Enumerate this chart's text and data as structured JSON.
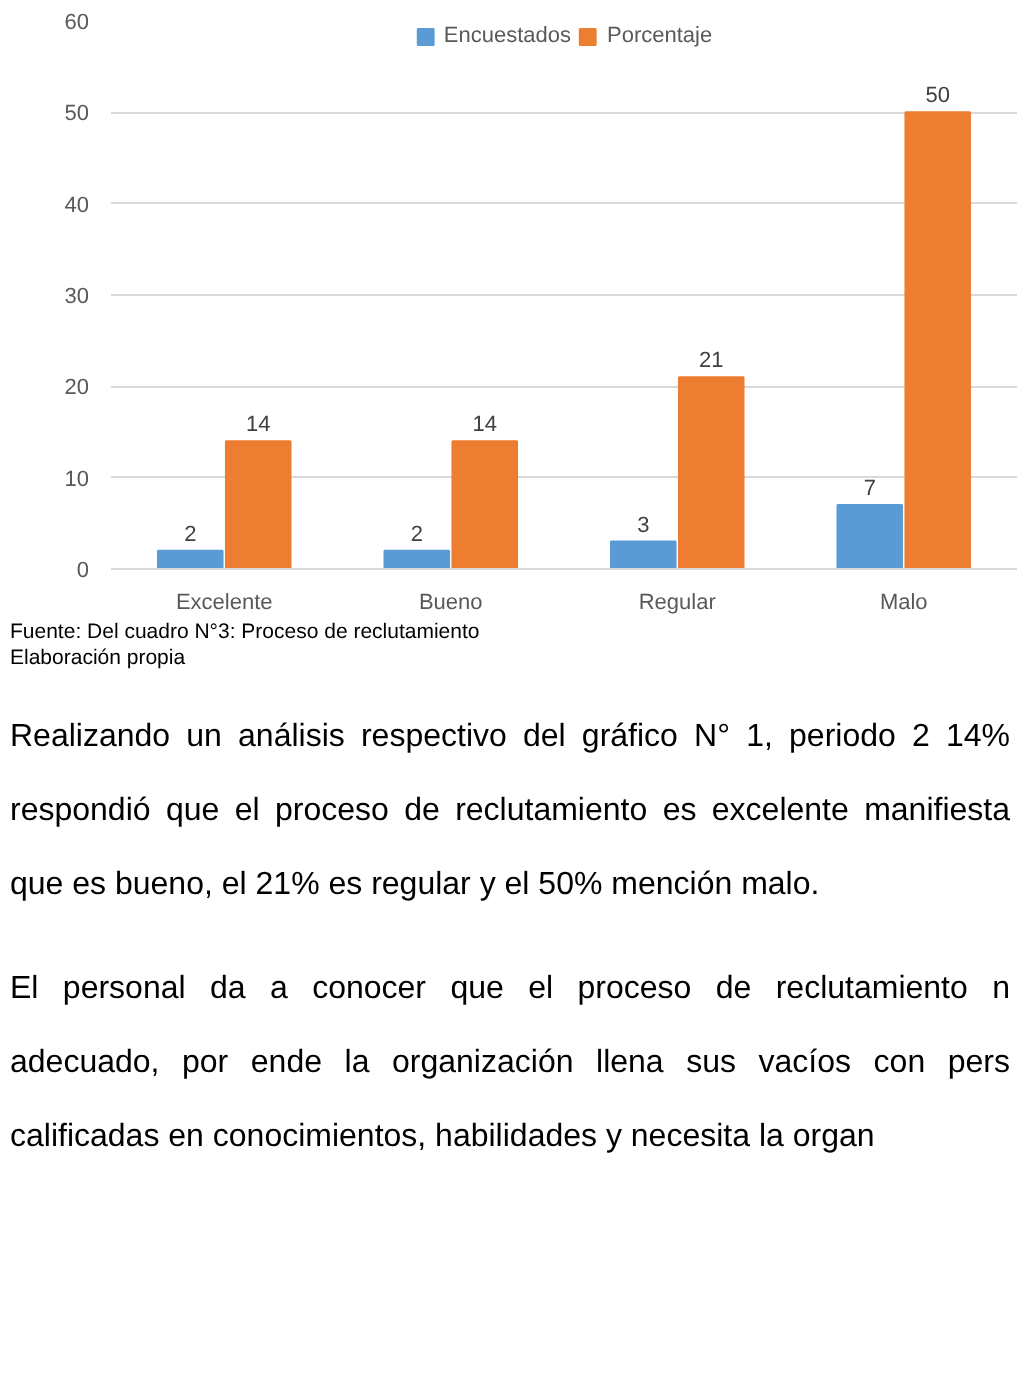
{
  "chart_data": {
    "type": "bar",
    "categories": [
      "Excelente",
      "Bueno",
      "Regular",
      "Malo"
    ],
    "series": [
      {
        "name": "Encuestados",
        "color": "#5b9bd5",
        "values": [
          2,
          2,
          3,
          7
        ]
      },
      {
        "name": "Porcentaje",
        "color": "#ed7d31",
        "values": [
          14,
          14,
          21,
          50
        ]
      }
    ],
    "ylim": [
      0,
      60
    ],
    "yticks": [
      0,
      10,
      20,
      30,
      40,
      50,
      60
    ],
    "grid": "y",
    "legend": "top",
    "data_labels": true,
    "annotations": [
      "Fuente: Del cuadro N°3: Proceso de reclutamiento",
      "Elaboración propia",
      "Realizando un análisis respectivo del gráfico N° 1, periodo 2 14% respondió que el proceso de reclutamiento es excelente manifiesta que es bueno, el 21% es regular y el 50% mención malo.",
      "El personal da a conocer que el proceso de reclutamiento n adecuado, por ende la organización llena sus vacíos con pers calificadas en conocimientos, habilidades y necesita la organ"
    ]
  }
}
